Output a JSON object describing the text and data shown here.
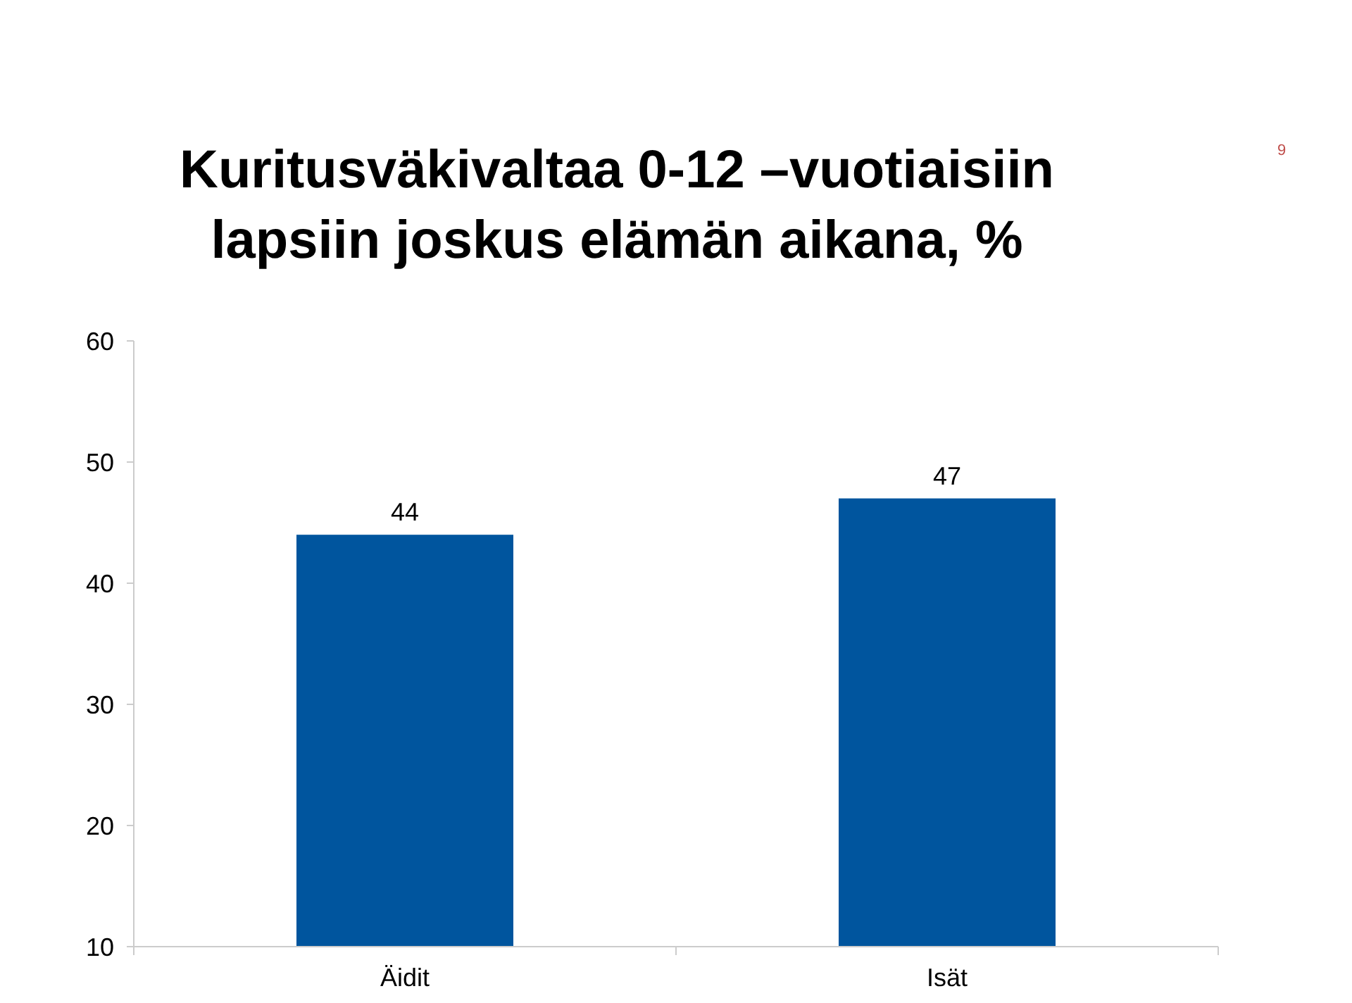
{
  "chart_data": {
    "type": "bar",
    "title": "Kuritusväkivaltaa 0-12 –vuotiaisiin\nlapsiin joskus elämän aikana, %",
    "categories": [
      "Äidit",
      "Isät"
    ],
    "values": [
      44,
      47
    ],
    "color": "#00559e",
    "ylim": [
      10,
      60
    ],
    "yticks": [
      10,
      20,
      30,
      40,
      50,
      60
    ],
    "data_labels": true,
    "grid": false,
    "annotations": [
      "9"
    ]
  }
}
